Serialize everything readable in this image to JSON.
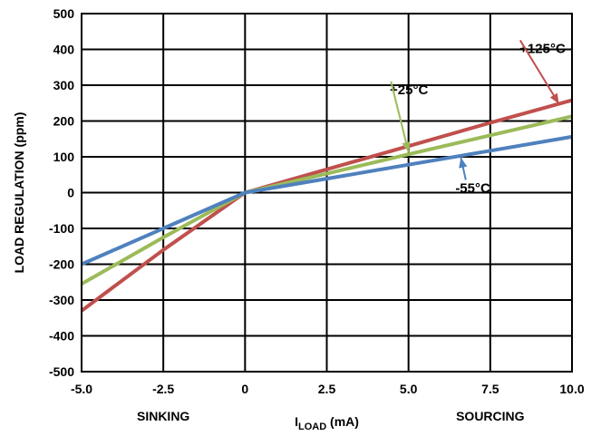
{
  "chart_data": {
    "type": "line",
    "title": "",
    "xlabel": "I",
    "xlabel_sub": "LOAD",
    "xlabel_unit": " (mA)",
    "ylabel": "LOAD REGULATION (ppm)",
    "xlim": [
      -5,
      10
    ],
    "ylim": [
      -500,
      500
    ],
    "x_ticks": [
      -5,
      -2.5,
      0,
      2.5,
      5,
      7.5,
      10
    ],
    "x_tick_labels": [
      "-5.0",
      "-2.5",
      "0",
      "2.5",
      "5.0",
      "7.5",
      "10.0"
    ],
    "y_ticks": [
      500,
      400,
      300,
      200,
      100,
      0,
      -100,
      -200,
      -300,
      -400,
      -500
    ],
    "y_tick_labels": [
      "500",
      "400",
      "300",
      "200",
      "100",
      "0",
      "-100",
      "-200",
      "-300",
      "-400",
      "-500"
    ],
    "grid": true,
    "region_labels": [
      {
        "text": "SINKING",
        "x": -2.5
      },
      {
        "text": "SOURCING",
        "x": 7.5
      }
    ],
    "series": [
      {
        "name": "+125°C",
        "color": "#c0504d",
        "x": [
          -5,
          -2.5,
          0,
          2.5,
          5,
          7.5,
          10
        ],
        "y": [
          -330,
          -160,
          0,
          65,
          130,
          195,
          258
        ],
        "label_at": [
          9.8,
          390
        ],
        "arrow_to": [
          9.6,
          248
        ]
      },
      {
        "name": "+25°C",
        "color": "#9bbb59",
        "x": [
          -5,
          -2.5,
          0,
          2.5,
          5,
          7.5,
          10
        ],
        "y": [
          -255,
          -125,
          0,
          53,
          107,
          160,
          213
        ],
        "label_at": [
          5.6,
          275
        ],
        "arrow_to": [
          5.0,
          113
        ]
      },
      {
        "name": "-55°C",
        "color": "#4f81bd",
        "x": [
          -5,
          -2.5,
          0,
          2.5,
          5,
          7.5,
          10
        ],
        "y": [
          -200,
          -100,
          0,
          39,
          78,
          117,
          156
        ],
        "label_at": [
          7.5,
          0
        ],
        "arrow_to": [
          6.6,
          98
        ]
      }
    ]
  }
}
